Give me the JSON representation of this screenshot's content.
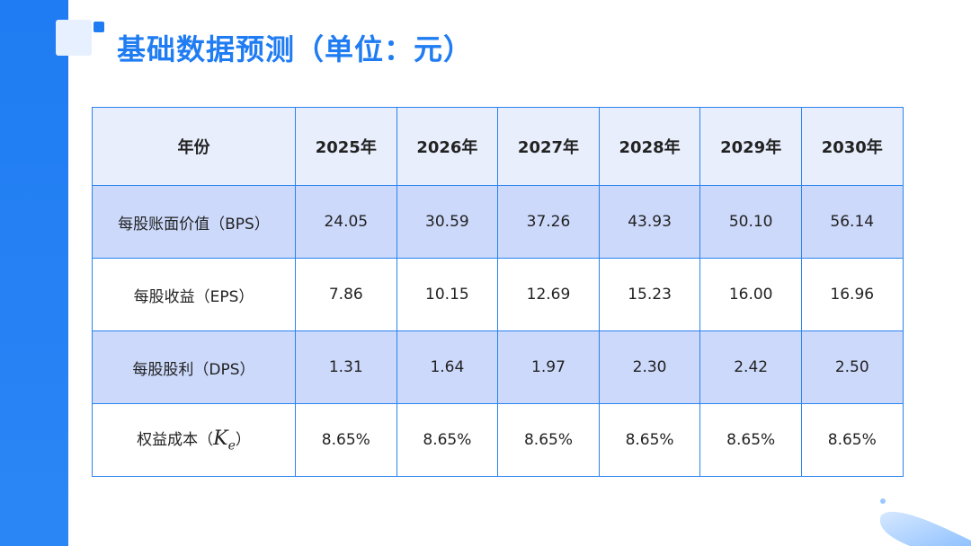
{
  "title": "基础数据预测（单位：元）",
  "table": {
    "header": [
      "年份",
      "2025年",
      "2026年",
      "2027年",
      "2028年",
      "2029年",
      "2030年"
    ],
    "rows": [
      {
        "label": "每股账面价值（BPS）",
        "values": [
          "24.05",
          "30.59",
          "37.26",
          "43.93",
          "50.10",
          "56.14"
        ]
      },
      {
        "label": "每股收益（EPS）",
        "values": [
          "7.86",
          "10.15",
          "12.69",
          "15.23",
          "16.00",
          "16.96"
        ]
      },
      {
        "label": "每股股利（DPS）",
        "values": [
          "1.31",
          "1.64",
          "1.97",
          "2.30",
          "2.42",
          "2.50"
        ]
      },
      {
        "label_prefix": "权益成本（",
        "label_symbol": "K",
        "label_sub": "e",
        "label_suffix": "）",
        "values": [
          "8.65%",
          "8.65%",
          "8.65%",
          "8.65%",
          "8.65%",
          "8.65%"
        ]
      }
    ]
  },
  "colors": {
    "accent": "#1f7cf2",
    "header_bg": "#e8eefc",
    "shaded_row": "#ccd9fb",
    "border": "#2a83f0"
  }
}
